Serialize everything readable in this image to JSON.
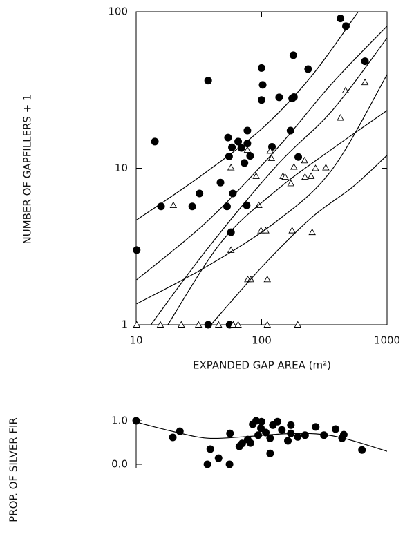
{
  "chart_data": [
    {
      "type": "scatter",
      "log_x": true,
      "log_y": true,
      "xlabel": "EXPANDED GAP AREA (m²)",
      "ylabel": "NUMBER OF GAPFILLERS + 1",
      "xlim": [
        10,
        1000
      ],
      "ylim": [
        1,
        100
      ],
      "xticks": [
        10,
        100,
        1000
      ],
      "yticks": [
        1,
        10,
        100
      ],
      "series": [
        {
          "marker": "circle",
          "color": "#000000",
          "x": [
            10.1,
            14.1,
            15.8,
            28,
            32,
            37.5,
            37.5,
            55.6,
            47,
            53,
            54,
            55,
            57,
            58,
            59,
            65,
            69,
            73,
            76,
            77,
            77,
            81,
            100,
            100,
            102,
            121,
            138,
            170,
            175,
            179,
            181,
            196,
            235,
            425,
            470,
            667
          ],
          "values": [
            3.0,
            14.8,
            5.7,
            5.7,
            6.9,
            36.3,
            1,
            1,
            8.1,
            5.7,
            15.7,
            11.9,
            3.9,
            13.6,
            6.9,
            14.8,
            13.5,
            10.8,
            5.8,
            17.4,
            14.4,
            12,
            27.3,
            43.7,
            34.1,
            13.7,
            28.4,
            17.4,
            27.9,
            52.8,
            28.5,
            11.8,
            43,
            90.7,
            80.9,
            48.3
          ]
        },
        {
          "marker": "triangle",
          "color": "#000000",
          "x": [
            10.1,
            15.6,
            19.8,
            22.9,
            31.4,
            45.4,
            59.4,
            65,
            57,
            57,
            77.5,
            82,
            90.5,
            95,
            98.8,
            108,
            111,
            111,
            117,
            120,
            148,
            171,
            175,
            194,
            154,
            181,
            220,
            222,
            248,
            253,
            269,
            325,
            425,
            467,
            667,
            77
          ],
          "values": [
            1,
            1,
            5.8,
            1,
            1,
            1,
            1,
            1,
            10.1,
            3.0,
            1.95,
            1.95,
            8.9,
            5.8,
            4,
            4,
            1.95,
            1,
            12.9,
            11.6,
            8.9,
            8,
            4,
            1,
            8.8,
            10.2,
            11.2,
            8.8,
            8.9,
            3.9,
            10,
            10.1,
            21,
            31.4,
            35.4,
            13.1
          ]
        },
        {
          "marker": "line",
          "color": "#000000",
          "x": [
            10.1,
            32.6,
            102,
            250,
            589
          ],
          "values": [
            4.68,
            8.9,
            18.1,
            38.8,
            100
          ]
        },
        {
          "marker": "line",
          "color": "#000000",
          "x": [
            10.1,
            37,
            132,
            366,
            1000
          ],
          "values": [
            1.94,
            4.59,
            13.3,
            35,
            81
          ]
        },
        {
          "marker": "line",
          "color": "#000000",
          "x": [
            10.1,
            37,
            132,
            366,
            1000
          ],
          "values": [
            1.36,
            2.37,
            4.59,
            9.85,
            39.7
          ]
        },
        {
          "marker": "line",
          "color": "#000000",
          "x": [
            13.1,
            37,
            132,
            366,
            1000
          ],
          "values": [
            1,
            3.06,
            10.4,
            23.4,
            68
          ]
        },
        {
          "marker": "line",
          "color": "#000000",
          "x": [
            17.9,
            47.8,
            132,
            366,
            1000
          ],
          "values": [
            1,
            3.38,
            7.25,
            13.3,
            23.4
          ]
        },
        {
          "marker": "line",
          "color": "#000000",
          "x": [
            39.5,
            102,
            250,
            536,
            1000
          ],
          "values": [
            1,
            2.37,
            4.83,
            7.63,
            12.1
          ]
        }
      ]
    },
    {
      "type": "scatter",
      "log_x": true,
      "ylabel": "PROP. OF SILVER FIR",
      "xlim": [
        10,
        1000
      ],
      "ylim": [
        0,
        1
      ],
      "yticks": [
        {
          "value": 0,
          "label": "0.0"
        },
        {
          "value": 1,
          "label": "1.0"
        }
      ],
      "series": [
        {
          "marker": "circle",
          "color": "#000000",
          "x": [
            10,
            19.6,
            22.3,
            37,
            39,
            45.4,
            55.5,
            56,
            66.5,
            70,
            77.5,
            81.5,
            85,
            90.5,
            93.9,
            98.8,
            100,
            108,
            117,
            117,
            123,
            134,
            145,
            162,
            171,
            171,
            194,
            222,
            270,
            314,
            389,
            438,
            452,
            631
          ],
          "values": [
            1.0,
            0.62,
            0.76,
            0,
            0.35,
            0.14,
            0,
            0.71,
            0.41,
            0.48,
            0.57,
            0.49,
            0.92,
            1.0,
            0.67,
            0.83,
            0.98,
            0.73,
            0.6,
            0.25,
            0.9,
            0.98,
            0.79,
            0.54,
            0.9,
            0.71,
            0.63,
            0.67,
            0.86,
            0.67,
            0.81,
            0.6,
            0.68,
            0.33
          ]
        },
        {
          "marker": "line",
          "color": "#000000",
          "x": [
            10,
            20,
            37,
            70,
            150,
            270,
            450,
            1000
          ],
          "values": [
            0.97,
            0.75,
            0.6,
            0.63,
            0.7,
            0.7,
            0.6,
            0.3
          ]
        }
      ]
    }
  ]
}
